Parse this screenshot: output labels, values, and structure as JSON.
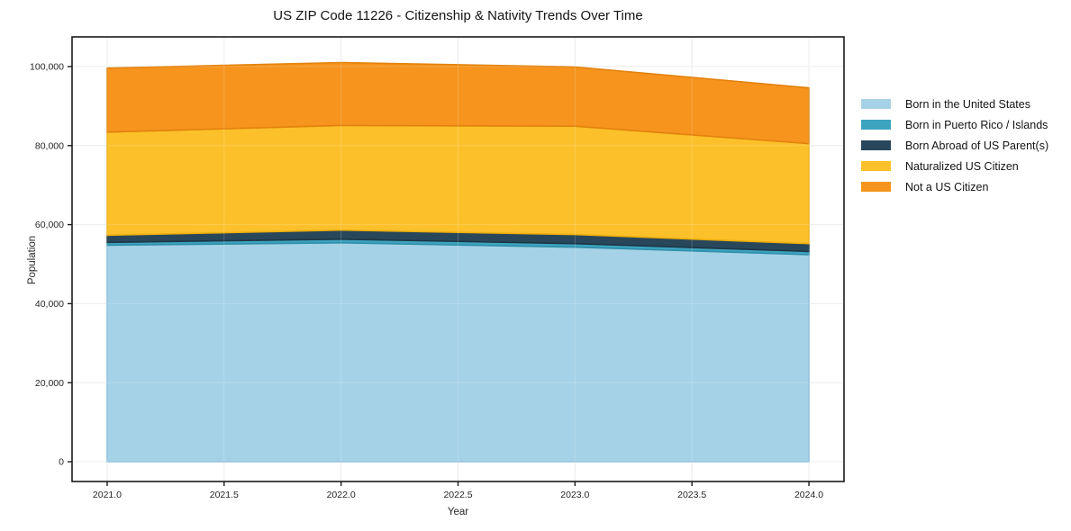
{
  "page": {
    "title": "US ZIP Code 11226 - Citizenship & Nativity Trends Over Time"
  },
  "chart_data": {
    "type": "area",
    "stacked": true,
    "title": "US ZIP Code 11226 - Citizenship & Nativity Trends Over Time",
    "xlabel": "Year",
    "ylabel": "Population",
    "x": [
      2021,
      2022,
      2023,
      2024
    ],
    "series": [
      {
        "name": "Born in the United States",
        "color": "#A5D2E7",
        "edge": "#85bcd8",
        "values": [
          54800,
          55400,
          54300,
          52400
        ]
      },
      {
        "name": "Born in Puerto Rico / Islands",
        "color": "#3DA4C0",
        "edge": "#2f8fa9",
        "values": [
          700,
          900,
          900,
          800
        ]
      },
      {
        "name": "Born Abroad of US Parent(s)",
        "color": "#29475A",
        "edge": "#1d3645",
        "values": [
          1800,
          2300,
          2300,
          2000
        ]
      },
      {
        "name": "Naturalized US Citizen",
        "color": "#FCC02A",
        "edge": "#edae0e",
        "values": [
          26100,
          26500,
          27400,
          25300
        ]
      },
      {
        "name": "Not a US Citizen",
        "color": "#F6941E",
        "edge": "#e2820d",
        "values": [
          16200,
          15900,
          15000,
          14100
        ]
      }
    ],
    "xlim": [
      2020.85,
      2024.15
    ],
    "ylim": [
      -5000,
      107500
    ],
    "xticks": [
      2021.0,
      2021.5,
      2022.0,
      2022.5,
      2023.0,
      2023.5,
      2024.0
    ],
    "yticks": [
      0,
      20000,
      40000,
      60000,
      80000,
      100000
    ],
    "grid": true,
    "legend_position": "right-outside",
    "colors": {
      "spine": "#1a1a1a",
      "grid": "#e8e8e8",
      "tick_label": "#262626",
      "background": "#ffffff"
    }
  }
}
